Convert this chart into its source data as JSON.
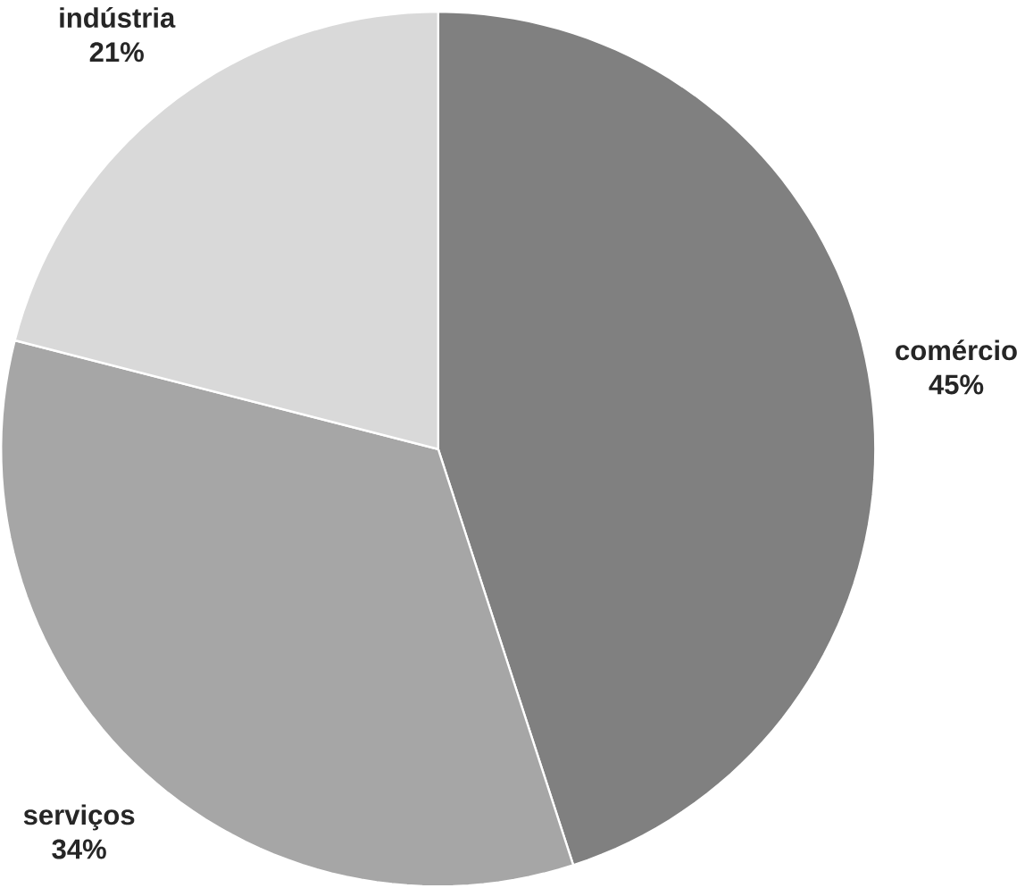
{
  "chart_data": {
    "type": "pie",
    "categories": [
      "comércio",
      "serviços",
      "indústria"
    ],
    "values": [
      45,
      34,
      21
    ],
    "colors": [
      "#808080",
      "#a6a6a6",
      "#d9d9d9"
    ],
    "value_labels": [
      "45%",
      "34%",
      "21%"
    ]
  }
}
